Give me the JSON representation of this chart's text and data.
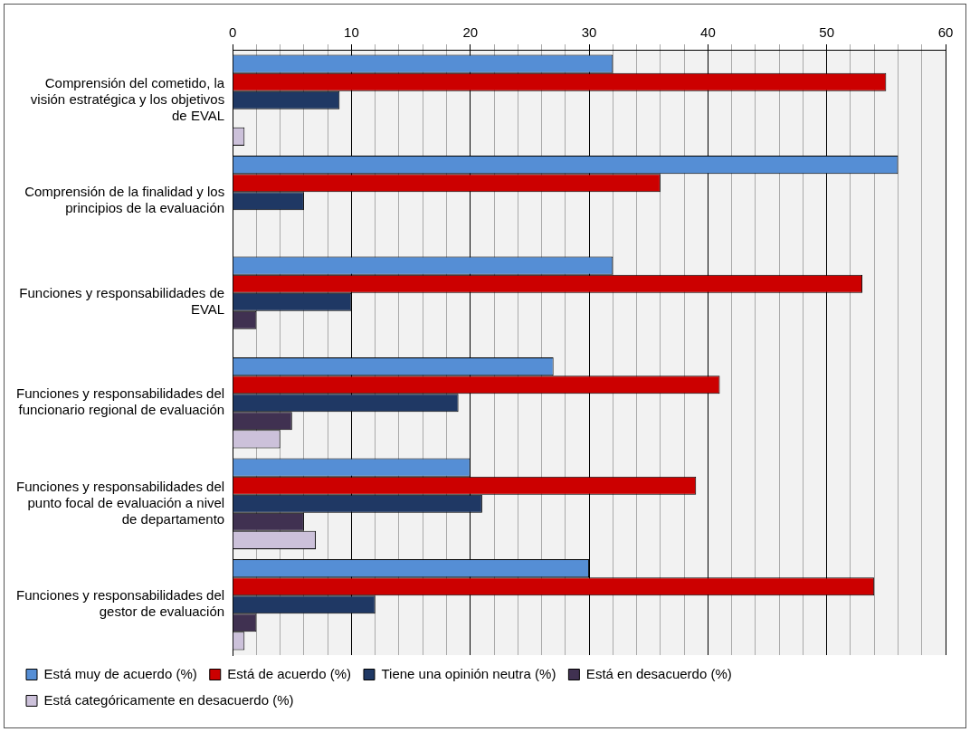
{
  "chart_data": {
    "type": "bar",
    "orientation": "horizontal",
    "categories": [
      "Comprensión del cometido, la visión estratégica y los objetivos de EVAL",
      "Comprensión de la finalidad y los principios de la evaluación",
      "Funciones y responsabilidades de EVAL",
      "Funciones y responsabilidades del funcionario regional de evaluación",
      "Funciones y responsabilidades del punto focal de evaluación a nivel de departamento",
      "Funciones y responsabilidades del gestor de evaluación"
    ],
    "series": [
      {
        "name": "Está muy de acuerdo (%)",
        "color": "#558ed5",
        "values": [
          32,
          56,
          32,
          27,
          20,
          30
        ]
      },
      {
        "name": "Está de acuerdo (%)",
        "color": "#cc0000",
        "values": [
          55,
          36,
          53,
          41,
          39,
          54
        ]
      },
      {
        "name": "Tiene una opinión neutra (%)",
        "color": "#1f3864",
        "values": [
          9,
          6,
          10,
          19,
          21,
          12
        ]
      },
      {
        "name": "Está en desacuerdo (%)",
        "color": "#403151",
        "values": [
          null,
          null,
          2,
          5,
          6,
          2
        ]
      },
      {
        "name": "Está categóricamente en desacuerdo (%)",
        "color": "#ccc1da",
        "values": [
          1,
          null,
          null,
          4,
          7,
          1
        ]
      }
    ],
    "xlim": [
      0,
      60
    ],
    "xticks": [
      0,
      {
        "value": 2,
        "label": null
      },
      {
        "value": 4,
        "label": null
      },
      {
        "value": 6,
        "label": null
      },
      {
        "value": 8,
        "label": null
      },
      10,
      {
        "value": 12,
        "label": null
      },
      {
        "value": 14,
        "label": null
      },
      {
        "value": 16,
        "label": null
      },
      {
        "value": 18,
        "label": null
      },
      20,
      {
        "value": 22,
        "label": null
      },
      {
        "value": 24,
        "label": null
      },
      {
        "value": 26,
        "label": null
      },
      {
        "value": 28,
        "label": null
      },
      30,
      {
        "value": 32,
        "label": null
      },
      {
        "value": 34,
        "label": null
      },
      {
        "value": 36,
        "label": null
      },
      {
        "value": 38,
        "label": null
      },
      40,
      {
        "value": 42,
        "label": null
      },
      {
        "value": 44,
        "label": null
      },
      {
        "value": 46,
        "label": null
      },
      {
        "value": 48,
        "label": null
      },
      50,
      {
        "value": 52,
        "label": null
      },
      {
        "value": 54,
        "label": null
      },
      {
        "value": 56,
        "label": null
      },
      {
        "value": 58,
        "label": null
      },
      60
    ],
    "grid": true,
    "legend": "bottom"
  }
}
